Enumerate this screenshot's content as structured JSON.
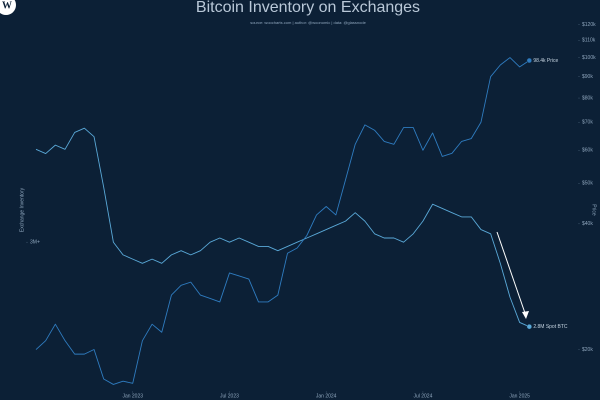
{
  "logo": "W",
  "chart_data": {
    "type": "line",
    "title": "Bitcoin Inventory on Exchanges",
    "subtitle": "source: woocharts.com | author: @woonomic | data: @glassnode",
    "y_label": "Exchange Inventory",
    "y2_label": "Price",
    "annotations": [
      "98.4k Price",
      "2.8M Spot BTC"
    ],
    "x": [
      2022.5,
      2022.55,
      2022.6,
      2022.65,
      2022.7,
      2022.75,
      2022.8,
      2022.85,
      2022.9,
      2022.95,
      2023,
      2023.05,
      2023.1,
      2023.15,
      2023.2,
      2023.25,
      2023.3,
      2023.35,
      2023.4,
      2023.45,
      2023.5,
      2023.55,
      2023.6,
      2023.65,
      2023.7,
      2023.75,
      2023.8,
      2023.85,
      2023.9,
      2023.95,
      2024,
      2024.05,
      2024.1,
      2024.15,
      2024.2,
      2024.25,
      2024.3,
      2024.35,
      2024.4,
      2024.45,
      2024.5,
      2024.55,
      2024.6,
      2024.65,
      2024.7,
      2024.75,
      2024.8,
      2024.85,
      2024.9,
      2024.95,
      2025,
      2025.05
    ],
    "series": [
      {
        "color": "#5aa9d8",
        "values": [
          3.22,
          3.21,
          3.23,
          3.22,
          3.26,
          3.27,
          3.25,
          3.13,
          3.0,
          2.97,
          2.96,
          2.95,
          2.96,
          2.95,
          2.97,
          2.98,
          2.97,
          2.98,
          3.0,
          3.01,
          3.0,
          3.01,
          3.0,
          2.99,
          2.99,
          2.98,
          2.99,
          3.0,
          3.01,
          3.02,
          3.03,
          3.04,
          3.05,
          3.07,
          3.05,
          3.02,
          3.01,
          3.01,
          3.0,
          3.02,
          3.05,
          3.09,
          3.08,
          3.07,
          3.06,
          3.06,
          3.03,
          3.02,
          2.95,
          2.87,
          2.81,
          2.8
        ]
      },
      {
        "color": "#2f7cc0",
        "axis": "y2",
        "values": [
          20,
          21,
          23,
          21,
          19.5,
          19.5,
          20,
          17,
          16.5,
          16.8,
          16.6,
          21,
          23,
          22,
          27,
          28.5,
          29,
          27,
          26.5,
          26,
          30.5,
          30,
          29.5,
          26,
          26,
          27,
          34,
          35,
          37.5,
          42,
          44,
          42,
          51,
          62,
          69,
          67,
          63,
          62,
          68,
          68,
          60,
          66,
          58,
          59,
          63,
          64,
          70,
          90,
          96,
          100,
          95,
          98.4
        ]
      }
    ],
    "xlim": [
      2022.5,
      2025.1
    ],
    "xticks": [
      {
        "value": 2023,
        "label": "Jan 2023"
      },
      {
        "value": 2023.5,
        "label": "Jul 2023"
      },
      {
        "value": 2024,
        "label": "Jan 2024"
      },
      {
        "value": 2024.5,
        "label": "Jul 2024"
      },
      {
        "value": 2025,
        "label": "Jan 2025"
      }
    ],
    "ylim": [
      2.65,
      3.55
    ],
    "yticks": [
      {
        "value": 3,
        "label": "3M+"
      }
    ],
    "y2lim": [
      16,
      130
    ],
    "y2_log": true,
    "y2ticks": [
      {
        "value": 20,
        "label": "$20k"
      },
      {
        "value": 40,
        "label": "$40k"
      },
      {
        "value": 50,
        "label": "$50k"
      },
      {
        "value": 60,
        "label": "$60k"
      },
      {
        "value": 70,
        "label": "$70k"
      },
      {
        "value": 80,
        "label": "$80k"
      },
      {
        "value": 90,
        "label": "$90k"
      },
      {
        "value": 100,
        "label": "$100k"
      },
      {
        "value": 110,
        "label": "$110k"
      },
      {
        "value": 120,
        "label": "$120k"
      }
    ]
  }
}
